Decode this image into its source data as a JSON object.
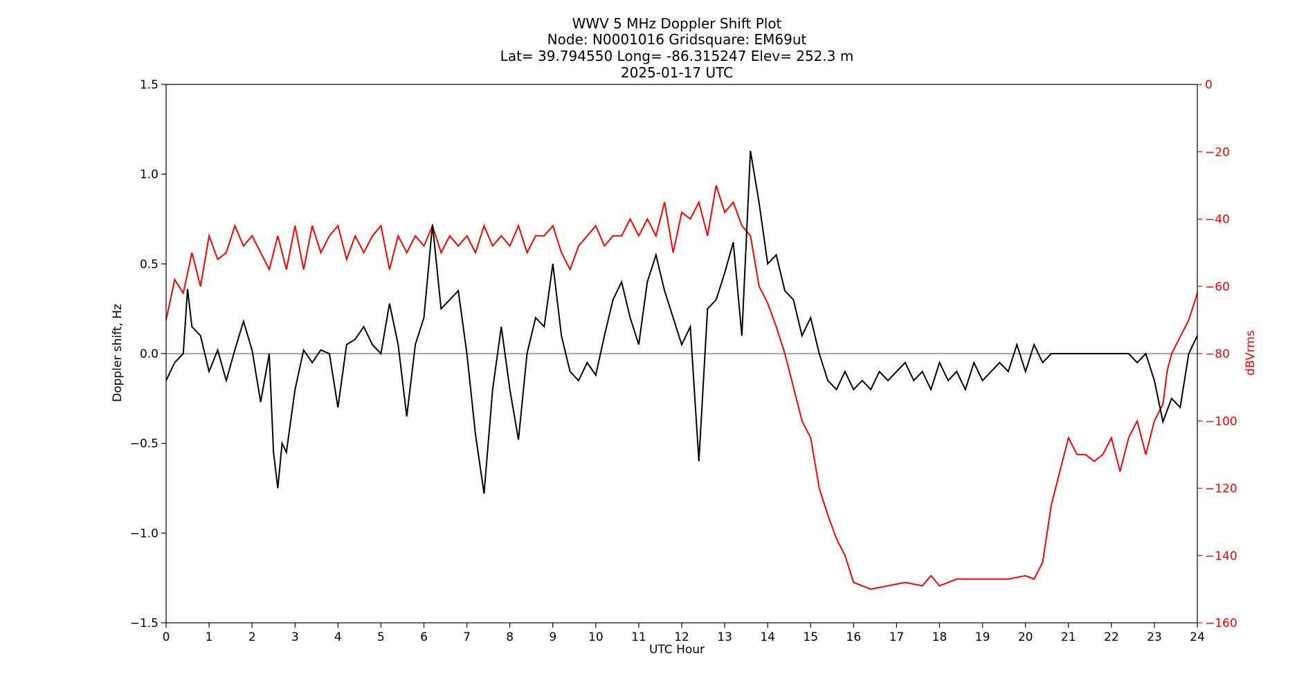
{
  "chart_data": {
    "type": "line",
    "title_lines": [
      "WWV 5 MHz Doppler Shift Plot",
      "Node:  N0001016     Gridsquare:  EM69ut",
      "Lat= 39.794550    Long= -86.315247    Elev= 252.3 m",
      "2025-01-17  UTC"
    ],
    "xlabel": "UTC Hour",
    "ylabel": "Doppler shift, Hz",
    "y2label": "dBVrms",
    "xlim": [
      0,
      24
    ],
    "ylim": [
      -1.5,
      1.5
    ],
    "y2lim": [
      -160,
      0
    ],
    "x_ticks": [
      0,
      1,
      2,
      3,
      4,
      5,
      6,
      7,
      8,
      9,
      10,
      11,
      12,
      13,
      14,
      15,
      16,
      17,
      18,
      19,
      20,
      21,
      22,
      23,
      24
    ],
    "y_ticks": [
      "1.5",
      "1.0",
      "0.5",
      "0.0",
      "−0.5",
      "−1.0",
      "−1.5"
    ],
    "y_tick_values": [
      1.5,
      1.0,
      0.5,
      0.0,
      -0.5,
      -1.0,
      -1.5
    ],
    "y2_ticks": [
      "0",
      "−20",
      "−40",
      "−60",
      "−80",
      "−100",
      "−120",
      "−140",
      "−160"
    ],
    "y2_tick_values": [
      0,
      -20,
      -40,
      -60,
      -80,
      -100,
      -120,
      -140,
      -160
    ],
    "zero_line": 0.0,
    "colors": {
      "doppler": "#000000",
      "power": "#ff0000",
      "zero_line": "#888888"
    },
    "series": [
      {
        "axis": "left",
        "x": [
          0,
          0.2,
          0.4,
          0.5,
          0.6,
          0.8,
          1.0,
          1.2,
          1.4,
          1.6,
          1.8,
          2.0,
          2.2,
          2.4,
          2.5,
          2.6,
          2.7,
          2.8,
          3.0,
          3.2,
          3.4,
          3.6,
          3.8,
          4.0,
          4.2,
          4.4,
          4.6,
          4.8,
          5.0,
          5.2,
          5.4,
          5.6,
          5.8,
          6.0,
          6.2,
          6.4,
          6.6,
          6.8,
          7.0,
          7.2,
          7.4,
          7.6,
          7.8,
          8.0,
          8.2,
          8.4,
          8.6,
          8.8,
          9.0,
          9.2,
          9.4,
          9.6,
          9.8,
          10.0,
          10.2,
          10.4,
          10.6,
          10.8,
          11.0,
          11.2,
          11.4,
          11.6,
          11.8,
          12.0,
          12.2,
          12.4,
          12.6,
          12.8,
          13.0,
          13.2,
          13.4,
          13.6,
          13.8,
          14.0,
          14.2,
          14.4,
          14.6,
          14.8,
          15.0,
          15.2,
          15.4,
          15.6,
          15.8,
          16.0,
          16.2,
          16.4,
          16.6,
          16.8,
          17.0,
          17.2,
          17.4,
          17.6,
          17.8,
          18.0,
          18.2,
          18.4,
          18.6,
          18.8,
          19.0,
          19.2,
          19.4,
          19.6,
          19.8,
          20.0,
          20.2,
          20.4,
          20.6,
          20.8,
          21.0,
          21.2,
          21.4,
          21.6,
          21.8,
          22.0,
          22.2,
          22.4,
          22.6,
          22.8,
          23.0,
          23.2,
          23.4,
          23.6,
          23.8,
          24.0
        ],
        "values": [
          -0.15,
          -0.05,
          0.0,
          0.36,
          0.15,
          0.1,
          -0.1,
          0.02,
          -0.15,
          0.02,
          0.18,
          0.02,
          -0.27,
          0.0,
          -0.55,
          -0.75,
          -0.5,
          -0.55,
          -0.2,
          0.02,
          -0.05,
          0.02,
          0.0,
          -0.3,
          0.05,
          0.08,
          0.15,
          0.05,
          0.0,
          0.28,
          0.05,
          -0.35,
          0.05,
          0.2,
          0.72,
          0.25,
          0.3,
          0.35,
          0.0,
          -0.45,
          -0.78,
          -0.2,
          0.15,
          -0.2,
          -0.48,
          0.0,
          0.2,
          0.15,
          0.5,
          0.1,
          -0.1,
          -0.15,
          -0.05,
          -0.12,
          0.1,
          0.3,
          0.4,
          0.2,
          0.05,
          0.4,
          0.55,
          0.35,
          0.2,
          0.05,
          0.15,
          -0.6,
          0.25,
          0.3,
          0.45,
          0.62,
          0.1,
          1.13,
          0.84,
          0.5,
          0.55,
          0.35,
          0.3,
          0.1,
          0.2,
          0.0,
          -0.15,
          -0.2,
          -0.1,
          -0.2,
          -0.15,
          -0.2,
          -0.1,
          -0.15,
          -0.1,
          -0.05,
          -0.15,
          -0.1,
          -0.2,
          -0.05,
          -0.15,
          -0.1,
          -0.2,
          -0.05,
          -0.15,
          -0.1,
          -0.05,
          -0.1,
          0.05,
          -0.1,
          0.05,
          -0.05,
          0.0,
          0.0,
          0.0,
          0.0,
          0.0,
          0.0,
          0.0,
          0.0,
          0.0,
          0.0,
          -0.05,
          0.0,
          -0.15,
          -0.38,
          -0.25,
          -0.3,
          0.0,
          0.1
        ]
      },
      {
        "axis": "right",
        "x": [
          0,
          0.2,
          0.4,
          0.6,
          0.8,
          1.0,
          1.2,
          1.4,
          1.6,
          1.8,
          2.0,
          2.2,
          2.4,
          2.6,
          2.8,
          3.0,
          3.2,
          3.4,
          3.6,
          3.8,
          4.0,
          4.2,
          4.4,
          4.6,
          4.8,
          5.0,
          5.2,
          5.4,
          5.6,
          5.8,
          6.0,
          6.2,
          6.4,
          6.6,
          6.8,
          7.0,
          7.2,
          7.4,
          7.6,
          7.8,
          8.0,
          8.2,
          8.4,
          8.6,
          8.8,
          9.0,
          9.2,
          9.4,
          9.6,
          9.8,
          10.0,
          10.2,
          10.4,
          10.6,
          10.8,
          11.0,
          11.2,
          11.4,
          11.6,
          11.8,
          12.0,
          12.2,
          12.4,
          12.6,
          12.8,
          13.0,
          13.2,
          13.4,
          13.6,
          13.8,
          14.0,
          14.2,
          14.4,
          14.6,
          14.8,
          15.0,
          15.2,
          15.4,
          15.6,
          15.8,
          16.0,
          16.4,
          16.8,
          17.2,
          17.6,
          17.8,
          18.0,
          18.4,
          18.8,
          19.2,
          19.6,
          20.0,
          20.2,
          20.4,
          20.6,
          20.8,
          21.0,
          21.2,
          21.4,
          21.6,
          21.8,
          22.0,
          22.2,
          22.4,
          22.6,
          22.8,
          23.0,
          23.2,
          23.3,
          23.4,
          23.6,
          23.8,
          24.0
        ],
        "values": [
          -70,
          -58,
          -62,
          -50,
          -60,
          -45,
          -52,
          -50,
          -42,
          -48,
          -45,
          -50,
          -55,
          -45,
          -55,
          -42,
          -55,
          -42,
          -50,
          -45,
          -42,
          -52,
          -45,
          -50,
          -45,
          -42,
          -55,
          -45,
          -50,
          -45,
          -48,
          -42,
          -50,
          -45,
          -48,
          -45,
          -50,
          -42,
          -48,
          -45,
          -48,
          -42,
          -50,
          -45,
          -45,
          -42,
          -50,
          -55,
          -48,
          -45,
          -42,
          -48,
          -45,
          -45,
          -40,
          -45,
          -40,
          -45,
          -35,
          -50,
          -38,
          -40,
          -35,
          -45,
          -30,
          -38,
          -35,
          -42,
          -45,
          -60,
          -65,
          -72,
          -80,
          -90,
          -100,
          -105,
          -120,
          -128,
          -135,
          -140,
          -148,
          -150,
          -149,
          -148,
          -149,
          -146,
          -149,
          -147,
          -147,
          -147,
          -147,
          -146,
          -147,
          -142,
          -125,
          -115,
          -105,
          -110,
          -110,
          -112,
          -110,
          -105,
          -115,
          -105,
          -100,
          -110,
          -100,
          -95,
          -85,
          -80,
          -75,
          -70,
          -62
        ],
        "name": ""
      }
    ]
  }
}
